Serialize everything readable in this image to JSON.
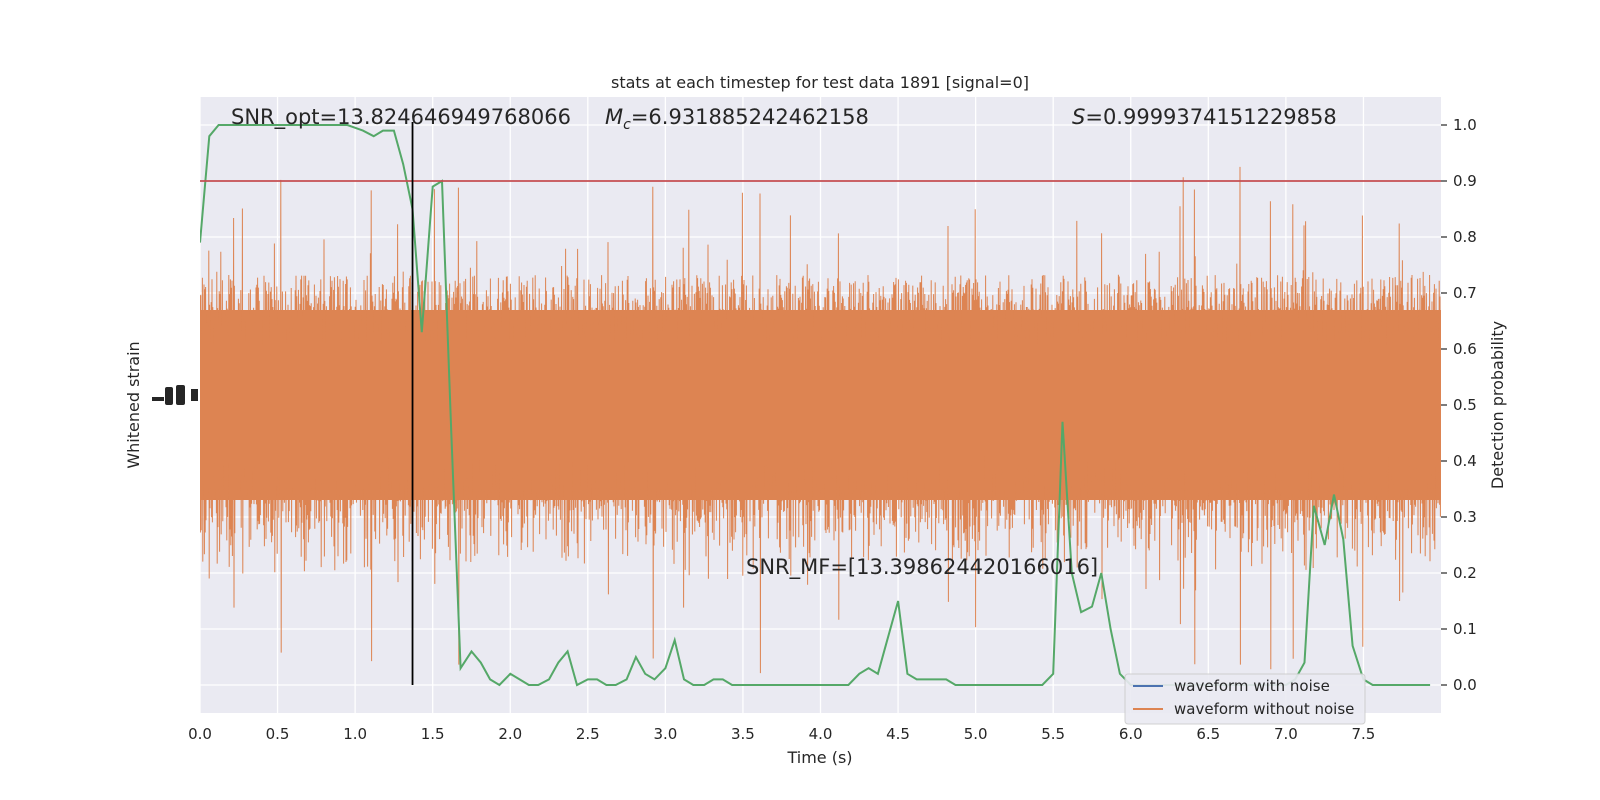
{
  "chart_data": {
    "type": "line",
    "title": "stats at each timestep for test data 1891 [signal=0]",
    "xlabel": "Time (s)",
    "ylabel_left": "Whitened strain",
    "ylabel_right": "Detection probability",
    "xlim": [
      0.0,
      8.0
    ],
    "ylim_right": [
      -0.05,
      1.05
    ],
    "x_ticks": [
      "0.0",
      "0.5",
      "1.0",
      "1.5",
      "2.0",
      "2.5",
      "3.0",
      "3.5",
      "4.0",
      "4.5",
      "5.0",
      "5.5",
      "6.0",
      "6.5",
      "7.0",
      "7.5"
    ],
    "y_ticks_right": [
      "0.0",
      "0.1",
      "0.2",
      "0.3",
      "0.4",
      "0.5",
      "0.6",
      "0.7",
      "0.8",
      "0.9",
      "1.0"
    ],
    "grid": true,
    "legend_position": "lower-right",
    "annotations": {
      "snr_opt": "SNR_opt=13.824646949768066",
      "chirp_mass": "=6.931885242462158",
      "chirp_mass_symbol": "M",
      "chirp_mass_sub": "c",
      "overlap": "=0.9999374151229858",
      "overlap_symbol": "S",
      "snr_mf": "SNR_MF=[13.398624420166016]"
    },
    "threshold": 0.9,
    "peak_time": 1.37,
    "series": [
      {
        "name": "waveform with noise",
        "color": "#4c72b0"
      },
      {
        "name": "waveform without noise",
        "color": "#dd8452"
      }
    ],
    "strain_color": "#dd8452",
    "detection_color": "#55a868",
    "threshold_color": "#c44e52",
    "marker_color": "#000000",
    "background_color": "#eaeaf2",
    "detection_probability": {
      "x": [
        0.0,
        0.06,
        0.12,
        0.18,
        0.25,
        0.35,
        0.5,
        0.65,
        0.8,
        0.95,
        1.05,
        1.12,
        1.18,
        1.25,
        1.31,
        1.37,
        1.43,
        1.5,
        1.56,
        1.62,
        1.68,
        1.75,
        1.81,
        1.87,
        1.93,
        2.0,
        2.06,
        2.12,
        2.18,
        2.25,
        2.31,
        2.37,
        2.43,
        2.5,
        2.56,
        2.62,
        2.68,
        2.75,
        2.81,
        2.87,
        2.93,
        3.0,
        3.06,
        3.12,
        3.18,
        3.25,
        3.31,
        3.37,
        3.43,
        3.5,
        3.56,
        3.62,
        3.68,
        3.75,
        3.81,
        3.87,
        3.93,
        4.0,
        4.06,
        4.12,
        4.18,
        4.25,
        4.31,
        4.37,
        4.43,
        4.5,
        4.56,
        4.62,
        4.68,
        4.75,
        4.81,
        4.87,
        4.93,
        5.0,
        5.06,
        5.12,
        5.18,
        5.25,
        5.31,
        5.37,
        5.43,
        5.5,
        5.56,
        5.62,
        5.68,
        5.75,
        5.81,
        5.87,
        5.93,
        6.0,
        6.06,
        6.12,
        6.18,
        6.25,
        6.31,
        6.37,
        6.43,
        6.5,
        6.56,
        6.62,
        6.68,
        6.75,
        6.81,
        6.87,
        6.93,
        7.0,
        7.06,
        7.12,
        7.18,
        7.25,
        7.31,
        7.37,
        7.43,
        7.5,
        7.56,
        7.62,
        7.68,
        7.75,
        7.81,
        7.87,
        7.93
      ],
      "y": [
        0.79,
        0.98,
        1.0,
        1.0,
        1.0,
        1.0,
        1.0,
        1.0,
        1.0,
        1.0,
        0.99,
        0.98,
        0.99,
        0.99,
        0.93,
        0.85,
        0.63,
        0.89,
        0.9,
        0.45,
        0.03,
        0.06,
        0.04,
        0.01,
        0.0,
        0.02,
        0.01,
        0.0,
        0.0,
        0.01,
        0.04,
        0.06,
        0.0,
        0.01,
        0.01,
        0.0,
        0.0,
        0.01,
        0.05,
        0.02,
        0.01,
        0.03,
        0.08,
        0.01,
        0.0,
        0.0,
        0.01,
        0.01,
        0.0,
        0.0,
        0.0,
        0.0,
        0.0,
        0.0,
        0.0,
        0.0,
        0.0,
        0.0,
        0.0,
        0.0,
        0.0,
        0.02,
        0.03,
        0.02,
        0.08,
        0.15,
        0.02,
        0.01,
        0.01,
        0.01,
        0.01,
        0.0,
        0.0,
        0.0,
        0.0,
        0.0,
        0.0,
        0.0,
        0.0,
        0.0,
        0.0,
        0.02,
        0.47,
        0.2,
        0.13,
        0.14,
        0.2,
        0.1,
        0.02,
        0.0,
        0.0,
        0.0,
        0.0,
        0.0,
        0.0,
        0.0,
        0.0,
        0.0,
        0.0,
        0.0,
        0.0,
        0.0,
        0.0,
        0.0,
        0.0,
        0.0,
        0.01,
        0.04,
        0.32,
        0.25,
        0.34,
        0.26,
        0.07,
        0.01,
        0.0,
        0.0,
        0.0,
        0.0,
        0.0,
        0.0,
        0.0
      ]
    }
  }
}
